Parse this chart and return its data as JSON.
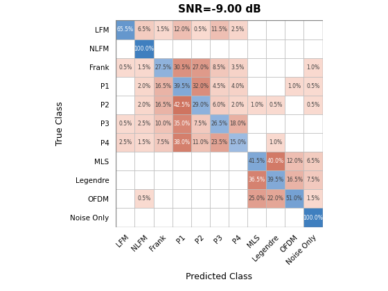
{
  "title": "SNR=-9.00 dB",
  "classes": [
    "LFM",
    "NLFM",
    "Frank",
    "P1",
    "P2",
    "P3",
    "P4",
    "MLS",
    "Legendre",
    "OFDM",
    "Noise Only"
  ],
  "matrix": [
    [
      65.5,
      6.5,
      1.5,
      12.0,
      0.5,
      11.5,
      2.5,
      0.0,
      0.0,
      0.0,
      0.0
    ],
    [
      0.0,
      100.0,
      0.0,
      0.0,
      0.0,
      0.0,
      0.0,
      0.0,
      0.0,
      0.0,
      0.0
    ],
    [
      0.5,
      1.5,
      27.5,
      30.5,
      27.0,
      8.5,
      3.5,
      0.0,
      0.0,
      0.0,
      1.0
    ],
    [
      0.0,
      2.0,
      16.5,
      39.5,
      32.0,
      4.5,
      4.0,
      0.0,
      0.0,
      1.0,
      0.5
    ],
    [
      0.0,
      2.0,
      16.5,
      42.5,
      29.0,
      6.0,
      2.0,
      1.0,
      0.5,
      0.0,
      0.5
    ],
    [
      0.5,
      2.5,
      10.0,
      35.0,
      7.5,
      26.5,
      18.0,
      0.0,
      0.0,
      0.0,
      0.0
    ],
    [
      2.5,
      1.5,
      7.5,
      38.0,
      11.0,
      23.5,
      15.0,
      0.0,
      1.0,
      0.0,
      0.0
    ],
    [
      0.0,
      0.0,
      0.0,
      0.0,
      0.0,
      0.0,
      0.0,
      41.5,
      40.0,
      12.0,
      6.5
    ],
    [
      0.0,
      0.0,
      0.0,
      0.0,
      0.0,
      0.0,
      0.0,
      36.5,
      39.5,
      16.5,
      7.5
    ],
    [
      0.0,
      0.5,
      0.0,
      0.0,
      0.0,
      0.0,
      0.0,
      25.0,
      22.0,
      51.0,
      1.5
    ],
    [
      0.0,
      0.0,
      0.0,
      0.0,
      0.0,
      0.0,
      0.0,
      0.0,
      0.0,
      0.0,
      100.0
    ]
  ],
  "xlabel": "Predicted Class",
  "ylabel": "True Class",
  "figsize": [
    5.6,
    4.2
  ],
  "dpi": 100,
  "cell_fontsize": 5.5,
  "title_fontsize": 11,
  "label_fontsize": 9,
  "tick_fontsize": 7.5,
  "text_dark": "#404040",
  "text_white": "#FFFFFF",
  "grid_color": "#BBBBBB",
  "white_color": "#FFFFFF",
  "blue_hi": [
    63,
    127,
    191
  ],
  "blue_lo": [
    174,
    198,
    232
  ],
  "red_hi": [
    205,
    110,
    90
  ],
  "red_lo": [
    250,
    220,
    210
  ]
}
